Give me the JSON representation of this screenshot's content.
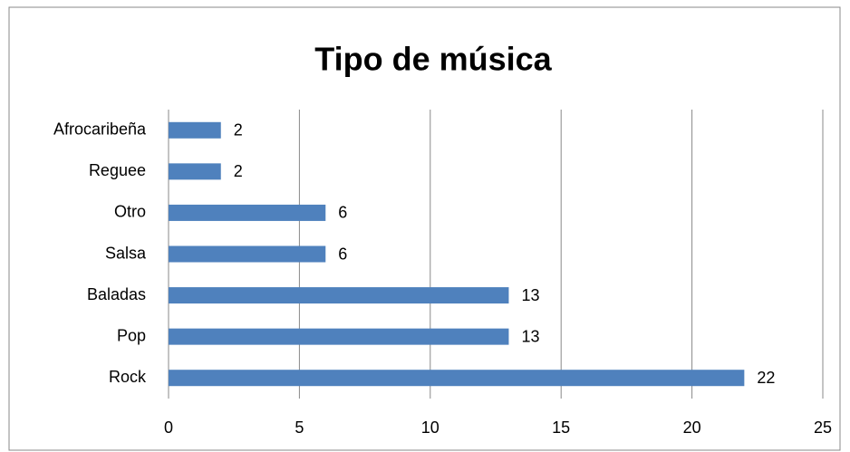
{
  "chart_data": {
    "type": "bar",
    "orientation": "horizontal",
    "title": "Tipo de música",
    "categories": [
      "Afrocaribeña",
      "Reguee",
      "Otro",
      "Salsa",
      "Baladas",
      "Pop",
      "Rock"
    ],
    "values": [
      2,
      2,
      6,
      6,
      13,
      13,
      22
    ],
    "color": "#4f81bd",
    "xlim": [
      0,
      25
    ],
    "xticks": [
      0,
      5,
      10,
      15,
      20,
      25
    ],
    "grid": true
  }
}
